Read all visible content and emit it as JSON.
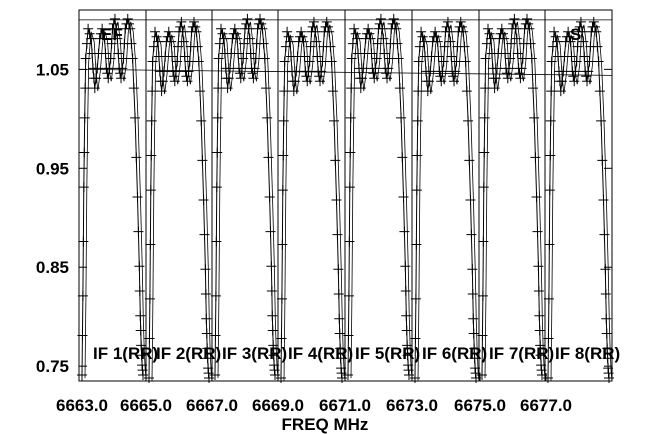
{
  "chart_data": {
    "type": "line",
    "title": "",
    "xlabel": "FREQ MHz",
    "ylabel": "",
    "xlim": [
      6663.0,
      6681.0
    ],
    "ylim": [
      0.735,
      1.11
    ],
    "grid": false,
    "x_tick_labels": [
      "6663.0",
      "6665.0",
      "6667.0",
      "6669.0",
      "6671.0",
      "6673.0",
      "6675.0",
      "6677.0"
    ],
    "x_ticks": [
      6663.0,
      6665.0,
      6667.0,
      6669.0,
      6671.0,
      6673.0,
      6675.0,
      6677.0
    ],
    "y_tick_labels": [
      "0.75",
      "0.85",
      "0.95",
      "1.05"
    ],
    "y_ticks": [
      0.75,
      0.85,
      0.95,
      1.05
    ],
    "reference_lines": [
      1.1,
      1.05
    ],
    "annotations": [
      "EF",
      "S"
    ],
    "panels": [
      {
        "label": "IF 1(RR)",
        "x_range": [
          6663.0,
          6665.25
        ]
      },
      {
        "label": "IF 2(RR)",
        "x_range": [
          6665.25,
          6667.25
        ]
      },
      {
        "label": "IF 3(RR)",
        "x_range": [
          6667.25,
          6669.25
        ]
      },
      {
        "label": "IF 4(RR)",
        "x_range": [
          6669.25,
          6671.25
        ]
      },
      {
        "label": "IF 5(RR)",
        "x_range": [
          6671.25,
          6673.25
        ]
      },
      {
        "label": "IF 6(RR)",
        "x_range": [
          6673.25,
          6675.25
        ]
      },
      {
        "label": "IF 7(RR)",
        "x_range": [
          6675.25,
          6677.25
        ]
      },
      {
        "label": "IF 8(RR)",
        "x_range": [
          6677.25,
          6679.25
        ]
      }
    ],
    "series": [
      {
        "profile_x_offset": [
          0.0,
          0.03,
          0.06,
          0.09,
          0.12,
          0.2,
          0.3,
          0.36,
          0.42,
          0.5,
          0.58,
          0.66,
          0.74,
          0.8,
          0.86,
          0.94,
          1.0,
          1.08,
          1.16,
          1.22,
          1.28,
          1.36,
          1.42,
          1.5,
          1.58,
          1.66,
          1.74,
          1.82,
          1.88,
          1.91,
          1.94,
          1.97,
          2.0
        ],
        "profile_y": [
          0.74,
          0.82,
          0.93,
          1.0,
          1.06,
          1.09,
          1.08,
          1.05,
          1.03,
          1.05,
          1.08,
          1.09,
          1.08,
          1.05,
          1.04,
          1.06,
          1.09,
          1.1,
          1.08,
          1.05,
          1.04,
          1.06,
          1.09,
          1.1,
          1.09,
          1.06,
          1.0,
          0.92,
          0.85,
          0.8,
          0.77,
          0.75,
          0.74
        ]
      }
    ]
  }
}
